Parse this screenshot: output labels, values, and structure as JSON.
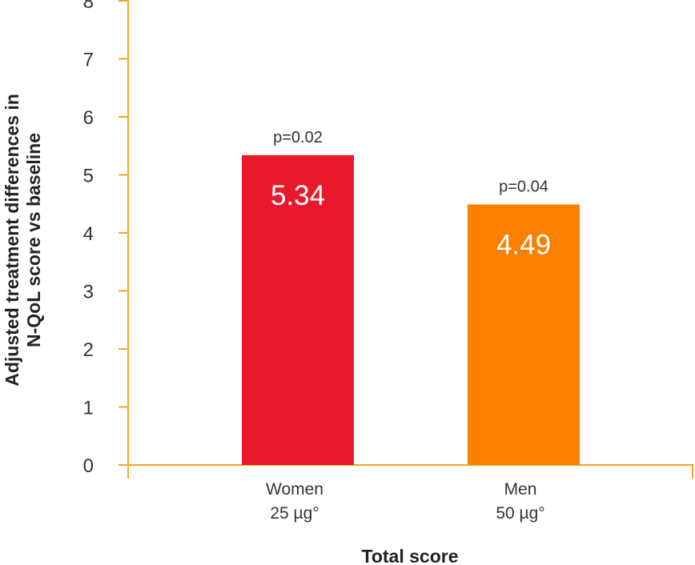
{
  "chart_data": {
    "type": "bar",
    "title": "",
    "xlabel": "Total score",
    "ylabel_lines": [
      "Adjusted treatment differences in",
      "N-QoL score vs baseline"
    ],
    "ylim": [
      0,
      8
    ],
    "yticks": [
      0,
      1,
      2,
      3,
      4,
      5,
      6,
      7,
      8
    ],
    "categories": [
      [
        "Women",
        "25 µg°"
      ],
      [
        "Men",
        "50 µg°"
      ]
    ],
    "values": [
      5.34,
      4.49
    ],
    "value_labels": [
      "5.34",
      "4.49"
    ],
    "p_values": [
      "p=0.02",
      "p=0.04"
    ],
    "bar_colors": [
      "#e8192c",
      "#f98000"
    ],
    "axis_color": "#f5a623",
    "grid": false,
    "legend": "none"
  }
}
